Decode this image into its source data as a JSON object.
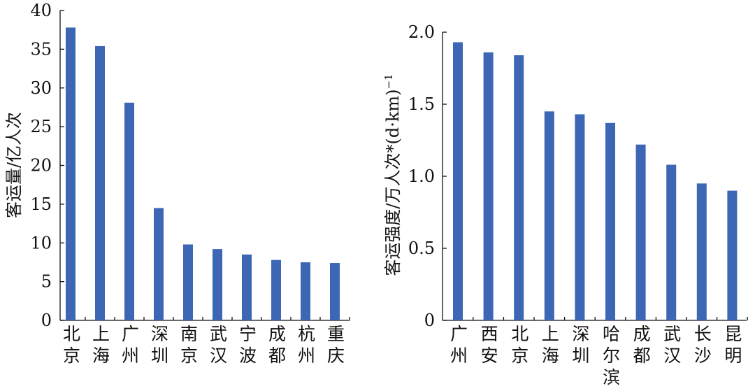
{
  "chart_data": [
    {
      "type": "bar",
      "ylabel": "客运量/亿人次",
      "categories": [
        "北京",
        "上海",
        "广州",
        "深圳",
        "南京",
        "武汉",
        "宁波",
        "成都",
        "杭州",
        "重庆"
      ],
      "values": [
        37.8,
        35.4,
        28.1,
        14.5,
        9.8,
        9.2,
        8.5,
        7.8,
        7.5,
        7.4
      ],
      "color": "#3d67b5",
      "ylim": [
        0,
        40
      ],
      "yticks": [
        0,
        5,
        10,
        15,
        20,
        25,
        30,
        35,
        40
      ]
    },
    {
      "type": "bar",
      "ylabel": "客运强度/万人次*(d·km)",
      "ylabel_superscript": "−1",
      "categories": [
        "广州",
        "西安",
        "北京",
        "上海",
        "深圳",
        "哈尔滨",
        "成都",
        "武汉",
        "长沙",
        "昆明"
      ],
      "values": [
        1.93,
        1.86,
        1.84,
        1.45,
        1.43,
        1.37,
        1.22,
        1.08,
        0.95,
        0.9
      ],
      "color": "#3d67b5",
      "ylim": [
        0,
        2.0
      ],
      "yticks": [
        0,
        0.5,
        {
          "value": 1.0,
          "label": "1.0"
        },
        1.5,
        {
          "value": 2.0,
          "label": "2.0"
        }
      ]
    }
  ]
}
